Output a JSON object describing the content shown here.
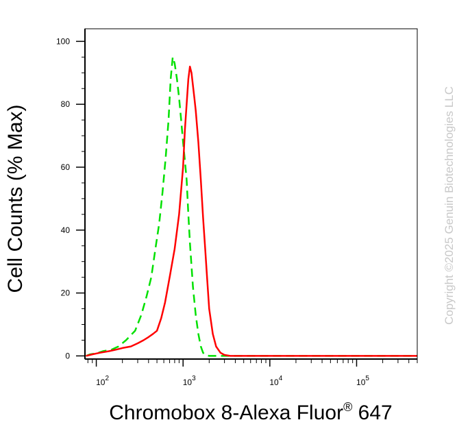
{
  "chart_data": {
    "type": "line",
    "title": "",
    "xlabel": "Chromobox 8-Alexa Fluor",
    "xlabel_reg": "®",
    "xlabel_suffix": " 647",
    "ylabel": "Cell Counts (% Max)",
    "watermark": "Copyright ©2025 Genuin Biotechnologies LLC",
    "x_scale": "log",
    "xlim": [
      74,
      500000
    ],
    "ylim": [
      -1,
      104
    ],
    "y_ticks": [
      0,
      20,
      40,
      60,
      80,
      100
    ],
    "y_tick_labels": [
      "0",
      "20",
      "40",
      "60",
      "80",
      "100"
    ],
    "x_ticks": [
      100,
      1000,
      10000,
      100000
    ],
    "x_tick_labels": [
      {
        "base": "10",
        "exp": "2"
      },
      {
        "base": "10",
        "exp": "3"
      },
      {
        "base": "10",
        "exp": "4"
      },
      {
        "base": "10",
        "exp": "5"
      }
    ],
    "grid": false,
    "legend": "none",
    "series": [
      {
        "color": "#00e000",
        "dash": "dashed",
        "x": [
          76,
          85,
          100,
          120,
          150,
          180,
          220,
          280,
          330,
          380,
          430,
          480,
          530,
          580,
          630,
          680,
          720,
          760,
          800,
          850,
          900,
          950,
          1000,
          1050,
          1100,
          1150,
          1200,
          1300,
          1400,
          1500,
          1600,
          1700,
          1800,
          2000,
          3000,
          10000,
          100000,
          500000
        ],
        "y": [
          0,
          0.5,
          0.8,
          1.5,
          2,
          3,
          5,
          8,
          13,
          19,
          25,
          34,
          42,
          52,
          63,
          75,
          88,
          95,
          93,
          88,
          82,
          75,
          68,
          62,
          56,
          45,
          36,
          22,
          13,
          7,
          3,
          1,
          0.3,
          0,
          0,
          0,
          0,
          0
        ]
      },
      {
        "color": "#ff0000",
        "dash": "solid",
        "x": [
          76,
          90,
          110,
          140,
          170,
          200,
          250,
          300,
          350,
          400,
          450,
          500,
          560,
          620,
          700,
          800,
          900,
          1000,
          1050,
          1100,
          1150,
          1200,
          1250,
          1300,
          1350,
          1400,
          1500,
          1600,
          1700,
          1800,
          1900,
          2000,
          2200,
          2400,
          2700,
          3000,
          3500,
          4500,
          10000,
          100000,
          500000
        ],
        "y": [
          0,
          0.5,
          1,
          1.5,
          2,
          2.5,
          3,
          4,
          5,
          6,
          7,
          8,
          12,
          17,
          25,
          34,
          45,
          60,
          72,
          80,
          88,
          92,
          90,
          86,
          82,
          78,
          68,
          56,
          44,
          34,
          24,
          15,
          7,
          3,
          1,
          0.3,
          0,
          0,
          0,
          0,
          0
        ]
      }
    ]
  }
}
